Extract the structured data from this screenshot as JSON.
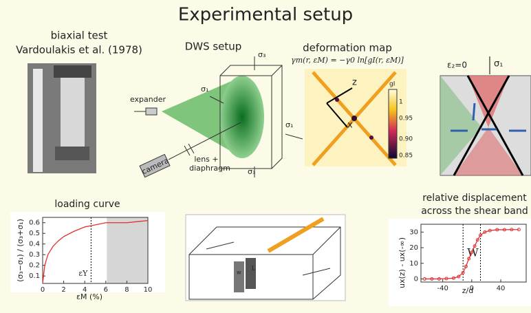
{
  "title": "Experimental setup",
  "biaxial": {
    "title_lines": [
      "biaxial test",
      "Vardoulakis et al. (1978)"
    ]
  },
  "dws": {
    "title": "DWS setup",
    "expander": "expander",
    "camera": "camera",
    "lens_lines": [
      "lens +",
      "diaphragm"
    ],
    "sigma_top": "σ₃",
    "sigma_left": "σ₁",
    "sigma_right": "σ₁",
    "sigma_bottom": "σ₃"
  },
  "deformation": {
    "title": "deformation map",
    "formula": "γm(r, εM) = −γ0 ln[gI(r, εM)]",
    "axis_z": "z",
    "axis_x": "x",
    "colorbar_label": "gI",
    "colorbar_ticks": [
      "1",
      "0.95",
      "0.90",
      "0.85"
    ]
  },
  "block": {
    "strain_label": "ε₂=0",
    "sigma": "σ₁"
  },
  "shear": {
    "w": "w",
    "L": "L"
  },
  "chart_data": [
    {
      "type": "line",
      "title": "loading curve",
      "x_label": "εM (%)",
      "y_label": "(σ₃−σ₁) / (σ₃+σ₁)",
      "color": "#e03030",
      "xlim": [
        0,
        10
      ],
      "ylim": [
        0.03,
        0.65
      ],
      "xticks": [
        0,
        2,
        4,
        6,
        8,
        10
      ],
      "yticks": [
        0.1,
        0.2,
        0.3,
        0.4,
        0.5,
        0.6
      ],
      "marker_x": 4.6,
      "marker_label": "εY",
      "shaded_range": [
        6.1,
        10
      ],
      "series": [
        {
          "x": [
            0,
            0.2,
            0.5,
            1,
            1.5,
            2,
            3,
            4,
            5,
            6,
            7,
            8,
            9,
            10
          ],
          "values": [
            0.03,
            0.2,
            0.3,
            0.38,
            0.43,
            0.47,
            0.52,
            0.56,
            0.58,
            0.6,
            0.6,
            0.6,
            0.61,
            0.62
          ]
        }
      ]
    },
    {
      "type": "line",
      "markers": true,
      "title_lines": [
        "relative displacement",
        "across the shear band"
      ],
      "x_label": "z/d",
      "y_label": "ux(z) - ux(-∞)",
      "color": "#e03030",
      "xlim": [
        -70,
        75
      ],
      "ylim": [
        -2,
        35
      ],
      "xticks": [
        -40,
        0,
        40
      ],
      "yticks": [
        0,
        10,
        20,
        30
      ],
      "marker_x": [
        -12,
        12
      ],
      "marker_label": "W",
      "series": [
        {
          "x": [
            -65,
            -55,
            -45,
            -35,
            -25,
            -18,
            -12,
            -8,
            -4,
            0,
            4,
            8,
            12,
            18,
            25,
            35,
            45,
            55,
            65
          ],
          "values": [
            0,
            0,
            0,
            0.2,
            0.5,
            1.5,
            4,
            8,
            13,
            17,
            21,
            25,
            28,
            30,
            31,
            31.5,
            31.5,
            31.6,
            31.6
          ]
        }
      ]
    }
  ]
}
